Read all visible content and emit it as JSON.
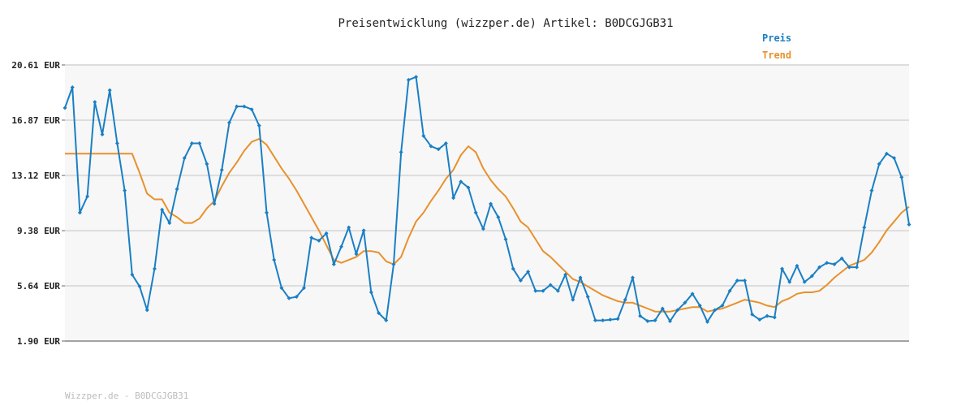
{
  "chart_data": {
    "type": "line",
    "title": "Preisentwicklung (wizzper.de) Artikel: B0DCGJGB31",
    "xlabel": "",
    "ylabel": "",
    "ylim": [
      1.9,
      20.61
    ],
    "y_ticks": [
      "1.90 EUR",
      "5.64 EUR",
      "9.38 EUR",
      "13.12 EUR",
      "16.87 EUR",
      "20.61 EUR"
    ],
    "y_tick_values": [
      1.9,
      5.64,
      9.38,
      13.12,
      16.87,
      20.61
    ],
    "grid": true,
    "legend_position": "top-right",
    "series": [
      {
        "name": "Preis",
        "color": "#1a7fc4",
        "values": [
          17.7,
          19.1,
          10.6,
          11.7,
          18.1,
          15.9,
          18.9,
          15.3,
          12.1,
          6.4,
          5.6,
          4.0,
          6.8,
          10.8,
          9.9,
          12.2,
          14.3,
          15.3,
          15.3,
          13.9,
          11.2,
          13.5,
          16.7,
          17.8,
          17.8,
          17.6,
          16.5,
          10.6,
          7.4,
          5.5,
          4.8,
          4.9,
          5.5,
          8.9,
          8.7,
          9.2,
          7.1,
          8.3,
          9.6,
          7.8,
          9.4,
          5.2,
          3.8,
          3.3,
          7.1,
          14.7,
          19.6,
          19.8,
          15.8,
          15.1,
          14.9,
          15.3,
          11.6,
          12.7,
          12.3,
          10.6,
          9.5,
          11.2,
          10.3,
          8.8,
          6.8,
          6.0,
          6.6,
          5.3,
          5.3,
          5.7,
          5.3,
          6.4,
          4.7,
          6.2,
          4.9,
          3.3,
          3.3,
          3.35,
          3.4,
          4.7,
          6.2,
          3.6,
          3.25,
          3.3,
          4.1,
          3.25,
          4.0,
          4.5,
          5.1,
          4.3,
          3.2,
          4.0,
          4.3,
          5.3,
          6.0,
          6.0,
          3.7,
          3.35,
          3.6,
          3.5,
          6.8,
          5.9,
          7.0,
          5.9,
          6.3,
          6.9,
          7.2,
          7.1,
          7.5,
          6.9,
          6.9,
          9.6,
          12.1,
          13.9,
          14.6,
          14.3,
          13.0,
          9.8
        ]
      },
      {
        "name": "Trend",
        "color": "#e8912c",
        "values": [
          14.6,
          14.6,
          14.6,
          14.6,
          14.6,
          14.6,
          14.6,
          14.6,
          14.6,
          14.6,
          13.3,
          11.9,
          11.5,
          11.5,
          10.6,
          10.3,
          9.9,
          9.9,
          10.2,
          10.9,
          11.4,
          12.4,
          13.3,
          14.0,
          14.8,
          15.4,
          15.6,
          15.2,
          14.4,
          13.6,
          12.9,
          12.1,
          11.2,
          10.3,
          9.4,
          8.4,
          7.4,
          7.2,
          7.4,
          7.6,
          8.0,
          8.0,
          7.9,
          7.3,
          7.1,
          7.6,
          8.9,
          10.0,
          10.6,
          11.4,
          12.1,
          12.9,
          13.5,
          14.5,
          15.1,
          14.7,
          13.6,
          12.8,
          12.2,
          11.7,
          10.9,
          10.0,
          9.6,
          8.8,
          8.0,
          7.6,
          7.1,
          6.6,
          6.1,
          5.9,
          5.6,
          5.3,
          5.0,
          4.8,
          4.6,
          4.5,
          4.5,
          4.3,
          4.1,
          3.9,
          3.9,
          3.9,
          4.0,
          4.1,
          4.2,
          4.2,
          3.9,
          4.0,
          4.1,
          4.3,
          4.5,
          4.7,
          4.6,
          4.5,
          4.3,
          4.2,
          4.6,
          4.8,
          5.1,
          5.2,
          5.2,
          5.3,
          5.7,
          6.2,
          6.6,
          7.0,
          7.2,
          7.4,
          7.9,
          8.6,
          9.4,
          10.0,
          10.6,
          11.0
        ]
      }
    ],
    "footer": "Wizzper.de - B0DCGJGB31"
  }
}
